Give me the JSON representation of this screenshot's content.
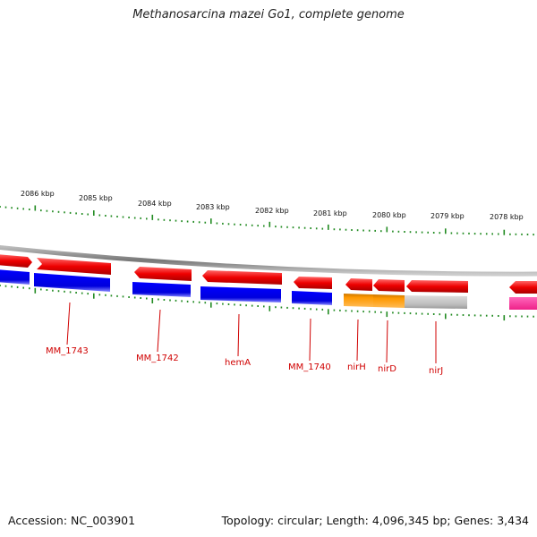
{
  "title": "Methanosarcina mazei Go1, complete genome",
  "footer": {
    "accession": "Accession: NC_003901",
    "summary": "Topology: circular; Length: 4,096,345 bp; Genes: 3,434"
  },
  "ruler": {
    "labels": [
      "2086 kbp",
      "2085 kbp",
      "2084 kbp",
      "2083 kbp",
      "2082 kbp",
      "2081 kbp",
      "2080 kbp",
      "2079 kbp",
      "2078 kbp"
    ]
  },
  "genes": [
    {
      "name": "MM_1743"
    },
    {
      "name": "MM_1742"
    },
    {
      "name": "hemA"
    },
    {
      "name": "MM_1740"
    },
    {
      "name": "nirH"
    },
    {
      "name": "nirD"
    },
    {
      "name": "nirJ"
    }
  ],
  "colors": {
    "cds": "#ee0000",
    "blue": "#0000ee",
    "orange": "#ff9900",
    "gray": "#bbbbbb",
    "pink": "#ff3399",
    "tick": "#228b22",
    "backbone": "#888888",
    "label": "#d00000"
  }
}
